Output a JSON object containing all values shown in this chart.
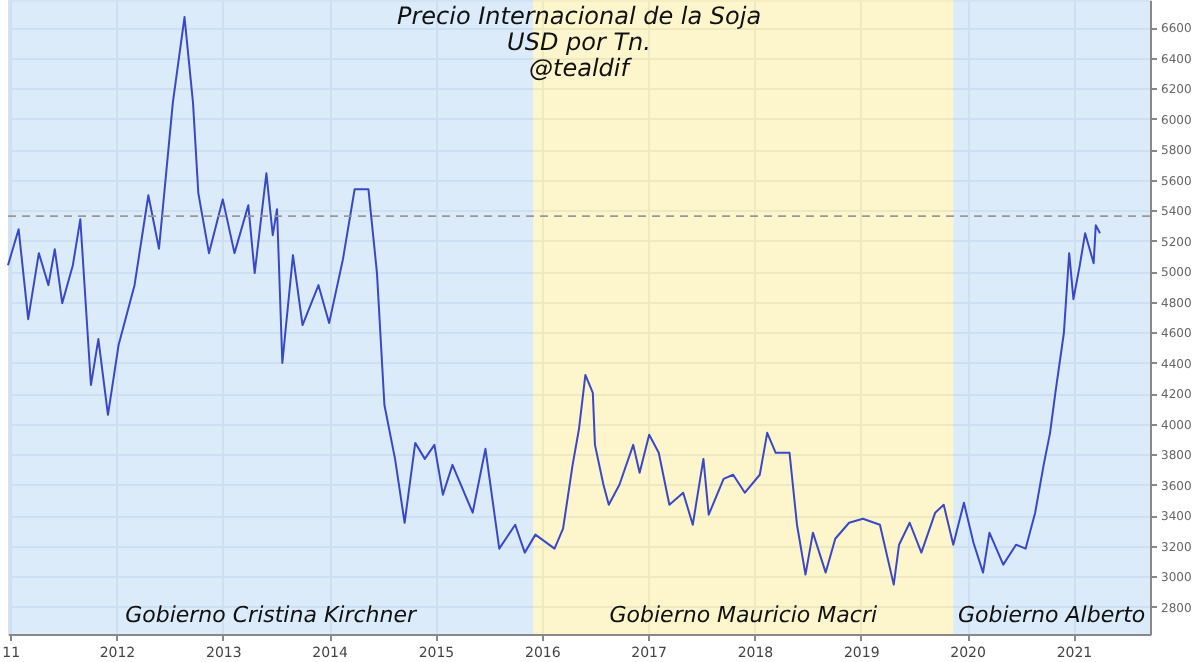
{
  "chart_data": {
    "type": "line",
    "title": "Precio Internacional de la Soja",
    "subtitle": "USD por Tn.\n@tealdif",
    "x": [
      2010.98,
      2011.08,
      2011.17,
      2011.27,
      2011.36,
      2011.42,
      2011.49,
      2011.59,
      2011.66,
      2011.76,
      2011.83,
      2011.92,
      2012.02,
      2012.17,
      2012.3,
      2012.4,
      2012.53,
      2012.64,
      2012.72,
      2012.77,
      2012.87,
      2013.0,
      2013.11,
      2013.24,
      2013.3,
      2013.41,
      2013.47,
      2013.51,
      2013.56,
      2013.66,
      2013.75,
      2013.9,
      2014.0,
      2014.13,
      2014.24,
      2014.37,
      2014.45,
      2014.52,
      2014.62,
      2014.71,
      2014.81,
      2014.9,
      2014.99,
      2015.07,
      2015.16,
      2015.35,
      2015.47,
      2015.6,
      2015.75,
      2015.84,
      2015.94,
      2016.12,
      2016.2,
      2016.29,
      2016.35,
      2016.41,
      2016.48,
      2016.5,
      2016.58,
      2016.63,
      2016.73,
      2016.86,
      2016.92,
      2017.01,
      2017.1,
      2017.2,
      2017.33,
      2017.42,
      2017.52,
      2017.57,
      2017.71,
      2017.8,
      2017.91,
      2018.05,
      2018.12,
      2018.2,
      2018.33,
      2018.4,
      2018.48,
      2018.55,
      2018.67,
      2018.76,
      2018.89,
      2019.02,
      2019.18,
      2019.31,
      2019.36,
      2019.46,
      2019.57,
      2019.7,
      2019.78,
      2019.87,
      2019.97,
      2020.06,
      2020.15,
      2020.21,
      2020.34,
      2020.46,
      2020.55,
      2020.64,
      2020.72,
      2020.78,
      2020.83,
      2020.91,
      2020.96,
      2021.0,
      2021.06,
      2021.11,
      2021.19,
      2021.21,
      2021.25
    ],
    "series": [
      {
        "color": "#3a48c8",
        "values": [
          5040,
          5276,
          4686,
          5119,
          4909,
          5145,
          4791,
          5040,
          5341,
          4254,
          4555,
          4058,
          4516,
          4909,
          5499,
          5148,
          6105,
          6668,
          6105,
          5512,
          5119,
          5472,
          5119,
          5433,
          4988,
          5643,
          5237,
          5407,
          4398,
          5106,
          4647,
          4909,
          4660,
          5079,
          5538,
          5538,
          4988,
          4123,
          3769,
          3350,
          3874,
          3769,
          3861,
          3534,
          3730,
          3416,
          3835,
          3180,
          3337,
          3154,
          3272,
          3180,
          3311,
          3730,
          3966,
          4320,
          4202,
          3861,
          3599,
          3468,
          3599,
          3861,
          3678,
          3927,
          3809,
          3468,
          3547,
          3337,
          3769,
          3403,
          3638,
          3665,
          3547,
          3665,
          3940,
          3809,
          3809,
          3337,
          3010,
          3285,
          3023,
          3245,
          3350,
          3376,
          3337,
          2944,
          3206,
          3350,
          3154,
          3416,
          3468,
          3206,
          3481,
          3219,
          3023,
          3285,
          3075,
          3206,
          3180,
          3416,
          3730,
          3940,
          4202,
          4595,
          5119,
          4817,
          5040,
          5250,
          5053,
          5302,
          5250
        ]
      }
    ],
    "xlim": [
      2010.98,
      2021.72
    ],
    "xticks": [
      {
        "value": 2011,
        "label": "11"
      },
      2012,
      2013,
      2014,
      2015,
      2016,
      2017,
      2018,
      2019,
      2020,
      2021
    ],
    "ylim": [
      2620,
      6780
    ],
    "yticks": [
      2800,
      3000,
      3200,
      3400,
      3600,
      3800,
      4000,
      4200,
      4400,
      4600,
      4800,
      5000,
      5200,
      5400,
      5600,
      5800,
      6000,
      6200,
      6400,
      6600
    ],
    "grid": true,
    "bands": [
      {
        "axis": "x",
        "from": 2010.98,
        "to": 2015.92,
        "label": "Gobierno Cristina Kirchner",
        "color": "#cfe4f8"
      },
      {
        "axis": "x",
        "from": 2015.92,
        "to": 2019.87,
        "label": "Gobierno Mauricio Macri",
        "color": "#fcf1b9"
      },
      {
        "axis": "x",
        "from": 2019.87,
        "to": 2021.72,
        "label": "Gobierno Alberto",
        "color": "#cfe4f8"
      }
    ],
    "ref_lines": [
      {
        "axis": "y",
        "value": 5362,
        "color": "#999999",
        "line_style": "dashed"
      }
    ]
  }
}
